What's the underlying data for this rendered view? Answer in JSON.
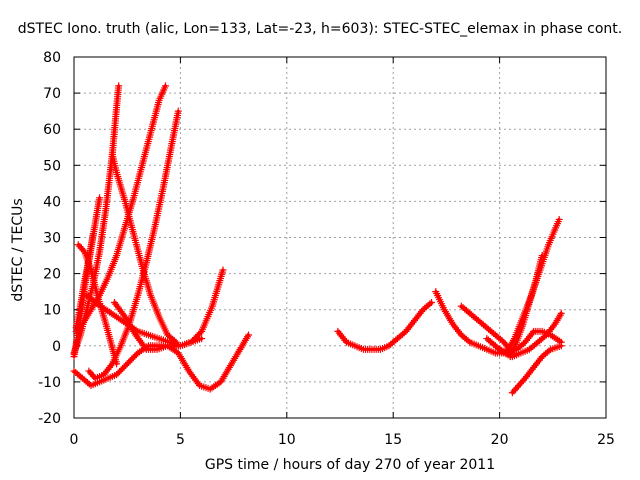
{
  "chart_data": {
    "type": "scatter",
    "title": "dSTEC Iono. truth (alic, Lon=133, Lat=-23, h=603): STEC-STEC_elemax in phase cont.",
    "xlabel": "GPS time / hours of day 270 of year 2011",
    "ylabel": "dSTEC  / TECUs",
    "xlim": [
      0,
      25
    ],
    "ylim": [
      -20,
      80
    ],
    "xticks": [
      0,
      5,
      10,
      15,
      20,
      25
    ],
    "yticks": [
      -20,
      -10,
      0,
      10,
      20,
      30,
      40,
      50,
      60,
      70,
      80
    ],
    "grid": true,
    "marker": "plus",
    "color": "#ff0000",
    "series": [
      {
        "x": [
          0.0,
          0.3,
          0.6,
          0.9,
          1.2,
          1.5,
          1.8,
          2.0,
          2.1
        ],
        "y": [
          -2,
          3,
          10,
          17,
          26,
          38,
          53,
          66,
          72
        ]
      },
      {
        "x": [
          0.0,
          0.2,
          0.4,
          0.6,
          0.8,
          1.0,
          1.2
        ],
        "y": [
          -3,
          4,
          12,
          20,
          27,
          34,
          41
        ]
      },
      {
        "x": [
          0.1,
          0.3,
          0.5,
          0.7,
          0.9
        ],
        "y": [
          5,
          11,
          18,
          24,
          31
        ]
      },
      {
        "x": [
          0.2,
          0.5,
          0.8,
          1.1,
          1.5,
          2.0
        ],
        "y": [
          28,
          26,
          21,
          14,
          6,
          -5
        ]
      },
      {
        "x": [
          0.1,
          0.4,
          0.8,
          1.2,
          1.6,
          2.0,
          2.4,
          2.8,
          3.2,
          3.6,
          4.0,
          4.3
        ],
        "y": [
          4,
          6,
          10,
          14,
          19,
          25,
          33,
          41,
          50,
          59,
          68,
          72
        ]
      },
      {
        "x": [
          0.7,
          1.0,
          1.4,
          1.8,
          2.2,
          2.6,
          3.0,
          3.4,
          3.8,
          4.2,
          4.6,
          4.9
        ],
        "y": [
          -7,
          -9,
          -8,
          -5,
          0,
          6,
          14,
          23,
          33,
          44,
          56,
          65
        ]
      },
      {
        "x": [
          1.8,
          2.0,
          2.4,
          2.8,
          3.2,
          3.6,
          4.0,
          4.4,
          4.8
        ],
        "y": [
          53,
          48,
          40,
          31,
          22,
          14,
          8,
          3,
          1
        ]
      },
      {
        "x": [
          0.6,
          1.0,
          1.5,
          2.0,
          2.5,
          3.0,
          3.5,
          4.0,
          4.5,
          5.0,
          5.5,
          6.0,
          6.5,
          7.0
        ],
        "y": [
          14,
          12,
          10,
          8,
          6,
          4,
          3,
          2,
          1,
          0,
          1,
          4,
          11,
          21
        ]
      },
      {
        "x": [
          1.9,
          2.4,
          2.9,
          3.4,
          3.9,
          4.4,
          4.9,
          5.4,
          5.9,
          6.4,
          6.9,
          7.4,
          7.8,
          8.2
        ],
        "y": [
          12,
          8,
          3,
          -1,
          -1,
          0,
          -2,
          -7,
          -11,
          -12,
          -10,
          -5,
          -1,
          3
        ]
      },
      {
        "x": [
          0.0,
          0.4,
          0.8,
          1.2,
          1.6,
          2.0,
          2.5,
          3.0,
          3.5,
          4.0,
          4.5,
          5.0,
          5.5,
          6.0
        ],
        "y": [
          -7,
          -9,
          -11,
          -10,
          -9,
          -8,
          -5,
          -2,
          0,
          0,
          0,
          0,
          1,
          2
        ]
      },
      {
        "x": [
          12.4,
          12.8,
          13.2,
          13.6,
          14.0,
          14.4,
          14.8,
          15.2,
          15.6,
          16.0,
          16.4,
          16.8
        ],
        "y": [
          4,
          1,
          0,
          -1,
          -1,
          -1,
          0,
          2,
          4,
          7,
          10,
          12
        ]
      },
      {
        "x": [
          17.0,
          17.4,
          17.8,
          18.2,
          18.6,
          19.0,
          19.4,
          19.8,
          20.2
        ],
        "y": [
          15,
          10,
          6,
          3,
          1,
          0,
          -1,
          -2,
          -2
        ]
      },
      {
        "x": [
          18.2,
          18.6,
          19.0,
          19.4,
          19.8,
          20.2,
          20.6
        ],
        "y": [
          11,
          9,
          7,
          5,
          3,
          1,
          -2
        ]
      },
      {
        "x": [
          19.4,
          19.8,
          20.2,
          20.6,
          21.0,
          21.4,
          21.8,
          22.2,
          22.6,
          22.9
        ],
        "y": [
          2,
          0,
          -2,
          -3,
          -2,
          -1,
          1,
          3,
          6,
          9
        ]
      },
      {
        "x": [
          20.0,
          20.4,
          20.8,
          21.2,
          21.6,
          22.0,
          22.4,
          22.9
        ],
        "y": [
          -1,
          -2,
          -1,
          1,
          4,
          4,
          3,
          1
        ]
      },
      {
        "x": [
          20.3,
          20.7,
          21.1,
          21.5,
          21.9,
          22.3,
          22.8
        ],
        "y": [
          -2,
          2,
          8,
          14,
          21,
          28,
          35
        ]
      },
      {
        "x": [
          20.5,
          20.8,
          21.1,
          21.4,
          21.7,
          22.0
        ],
        "y": [
          -3,
          1,
          6,
          12,
          18,
          25
        ]
      },
      {
        "x": [
          20.6,
          20.9,
          21.2,
          21.6,
          22.0,
          22.4,
          22.9
        ],
        "y": [
          -13,
          -11,
          -9,
          -6,
          -3,
          -1,
          0
        ]
      }
    ]
  }
}
